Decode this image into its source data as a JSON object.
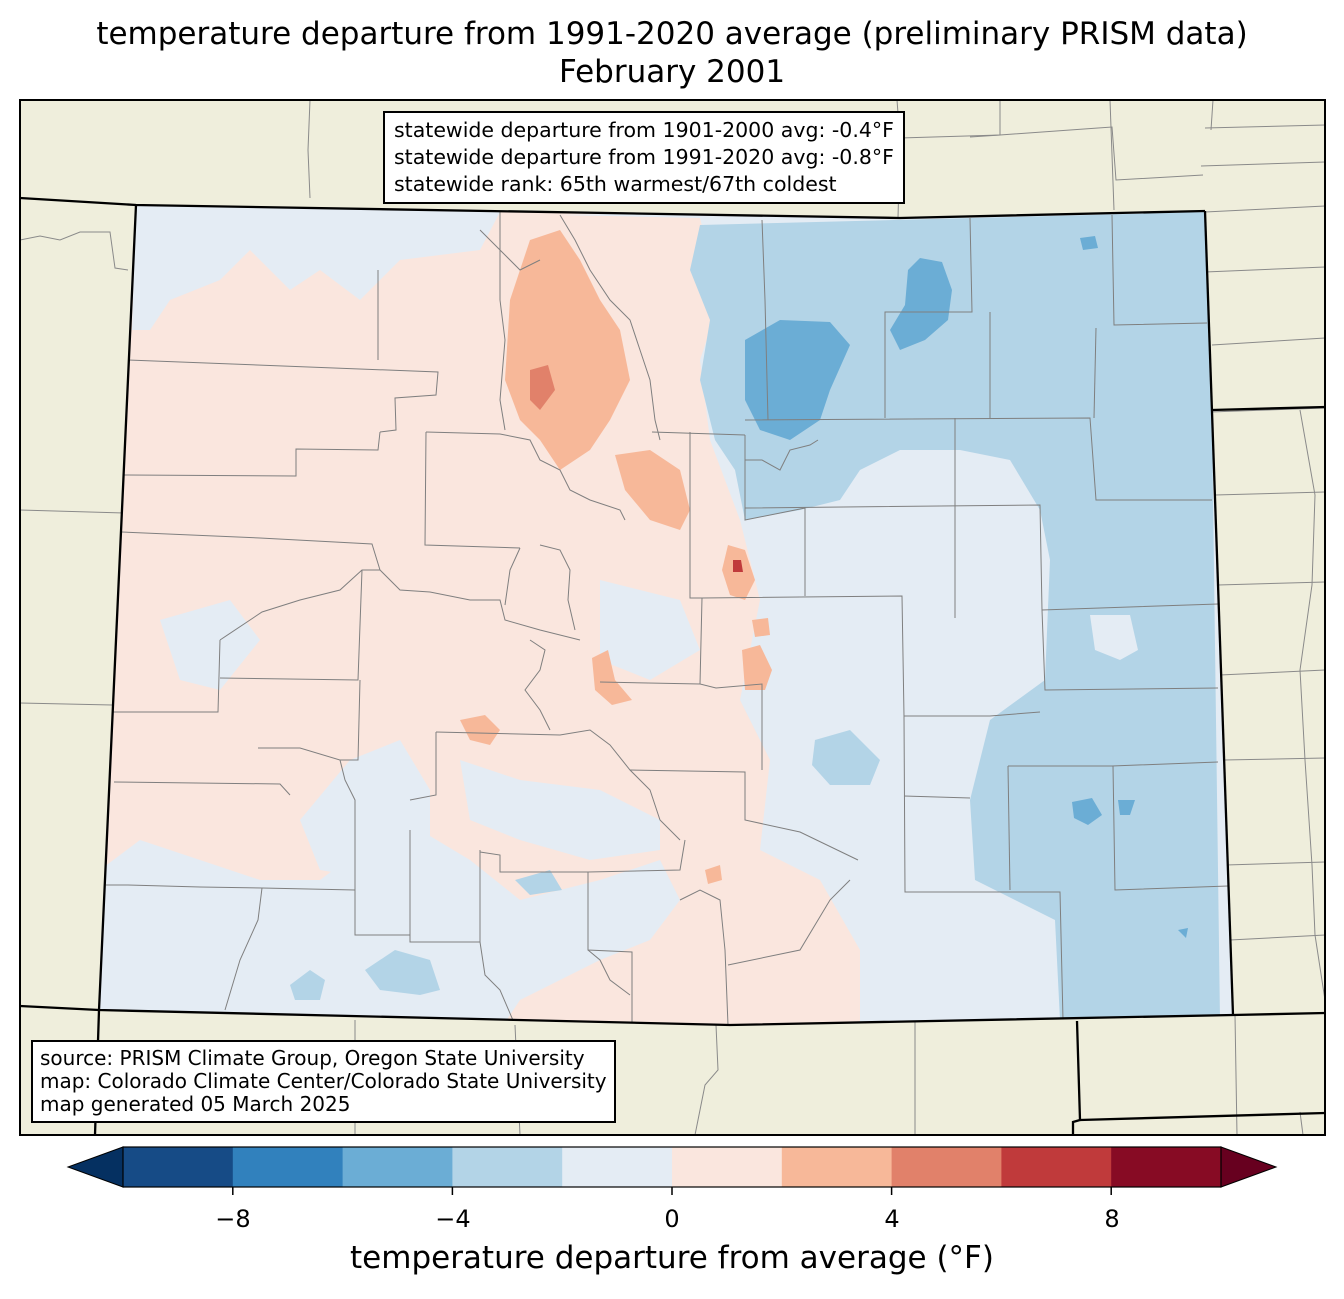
{
  "title": {
    "line1": "temperature departure from 1991-2020 average (preliminary PRISM data)",
    "line2": "February 2001"
  },
  "stats_box": {
    "line1": "statewide departure from 1901-2000 avg: -0.4°F",
    "line2": "statewide departure from 1991-2020 avg: -0.8°F",
    "line3": "statewide rank: 65th warmest/67th coldest"
  },
  "source_box": {
    "line1": "source: PRISM Climate Group, Oregon State University",
    "line2": "map: Colorado Climate Center/Colorado State University",
    "line3": "map generated 05 March 2025"
  },
  "colorbar": {
    "label": "temperature departure from average (°F)",
    "ticks": [
      "−8",
      "−4",
      "0",
      "4",
      "8"
    ],
    "bins": [
      -10,
      -8,
      -6,
      -4,
      -2,
      0,
      2,
      4,
      6,
      8,
      10
    ],
    "colors": [
      "#164b86",
      "#3181bd",
      "#6badd5",
      "#b3d4e7",
      "#e4ecf4",
      "#fae6de",
      "#f7b899",
      "#e1816a",
      "#c03a3b",
      "#870b24"
    ],
    "under_color": "#053061",
    "over_color": "#67001f"
  },
  "map": {
    "state": "Colorado",
    "land_color": "#efeedc",
    "legend_colors": {
      "light_blue": "#e4ecf4",
      "blue": "#b3d4e7",
      "mid_blue": "#6badd5",
      "light_red": "#fae6de",
      "red": "#f7b899",
      "mid_red": "#e1816a",
      "dark_red": "#c03a3b"
    }
  }
}
